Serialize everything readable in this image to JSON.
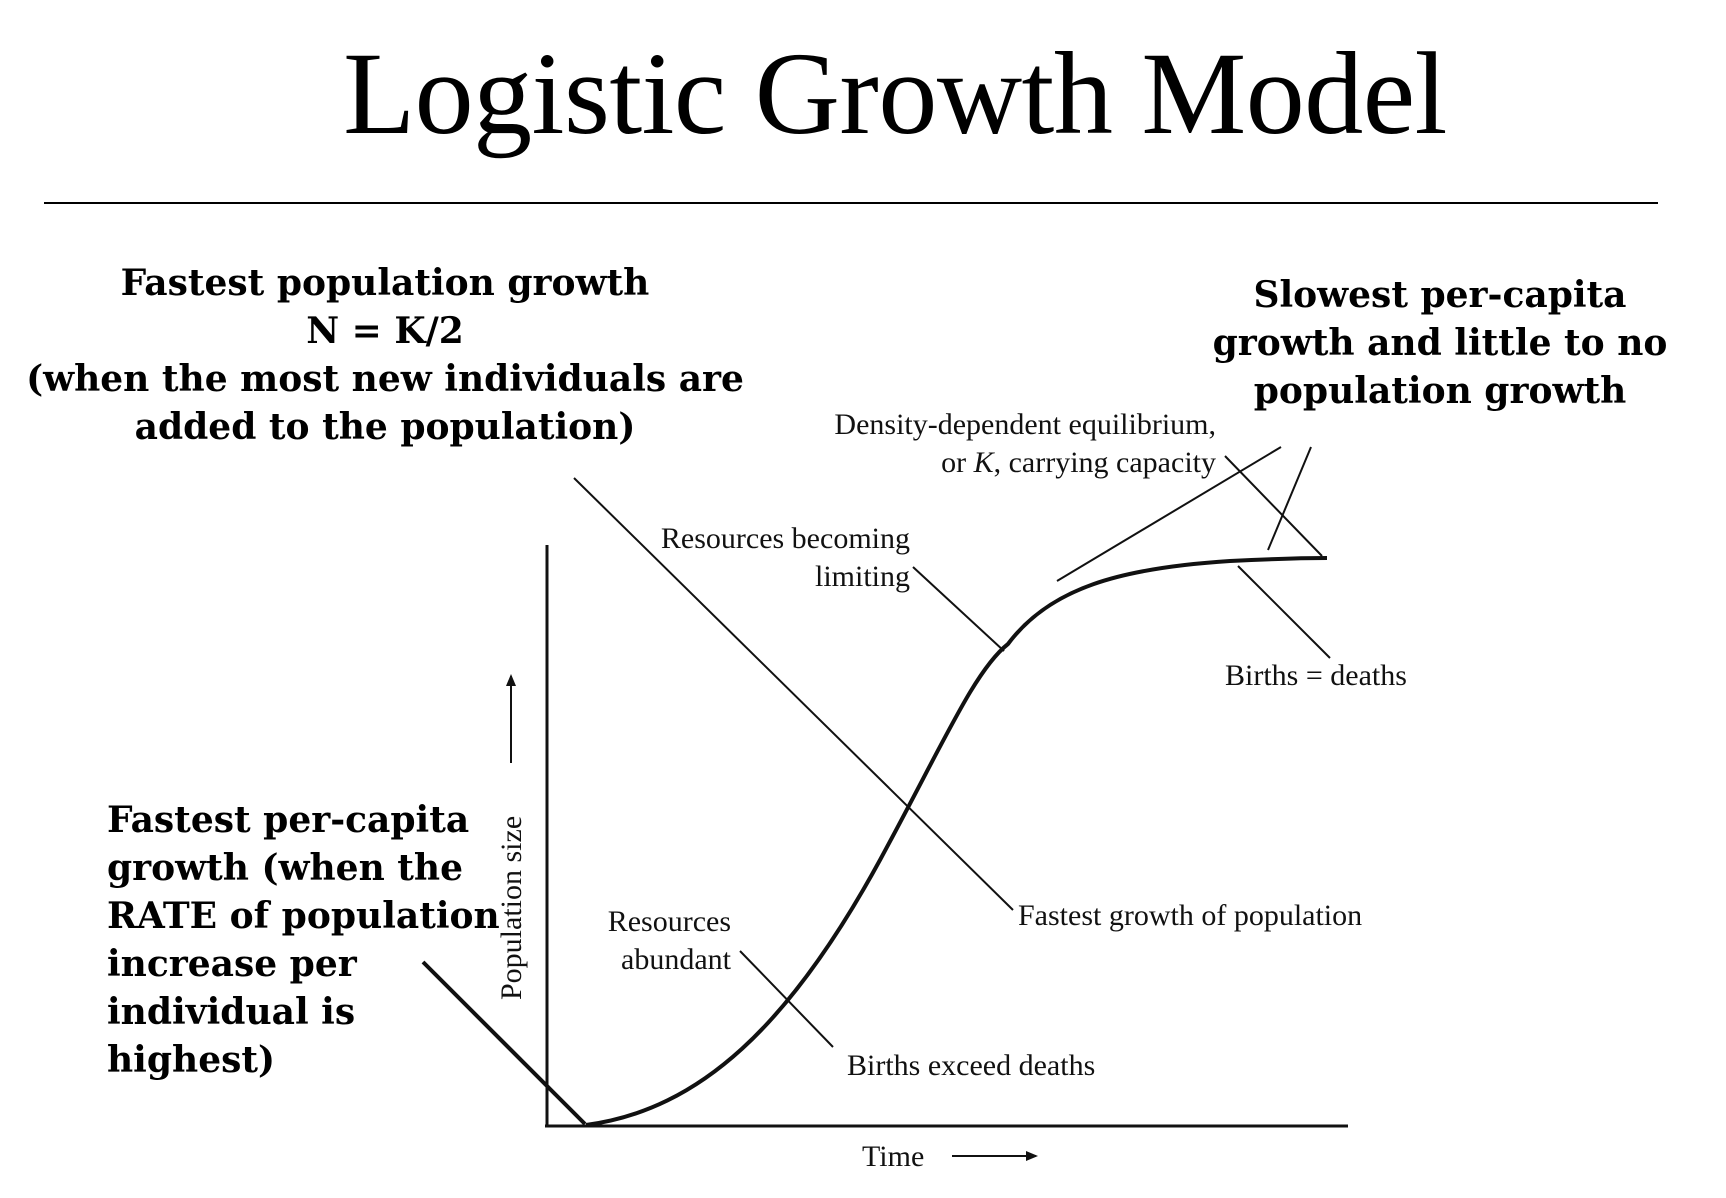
{
  "slide": {
    "title": "Logistic Growth Model"
  },
  "callouts": {
    "fastest_population_growth": [
      "Fastest population growth",
      "N = K/2",
      "(when the most new individuals are",
      "added to the population)"
    ],
    "slowest_per_capita": [
      "Slowest per-capita",
      "growth and little to no",
      "population growth"
    ],
    "fastest_per_capita": [
      "Fastest per-capita",
      "growth (when the",
      "RATE of population",
      "increase per",
      "individual is",
      "highest)"
    ]
  },
  "figure": {
    "axis_x_label": "Time",
    "axis_y_label": "Population size",
    "labels": {
      "equilibrium_line1": "Density-dependent equilibrium,",
      "equilibrium_line2_prefix": "or ",
      "equilibrium_line2_k": "K",
      "equilibrium_line2_suffix": ", carrying capacity",
      "resources_limiting_line1": "Resources becoming",
      "resources_limiting_line2": "limiting",
      "births_equal_deaths": "Births = deaths",
      "fastest_growth": "Fastest growth of population",
      "resources_abundant_line1": "Resources",
      "resources_abundant_line2": "abundant",
      "births_exceed_deaths": "Births exceed deaths"
    }
  }
}
